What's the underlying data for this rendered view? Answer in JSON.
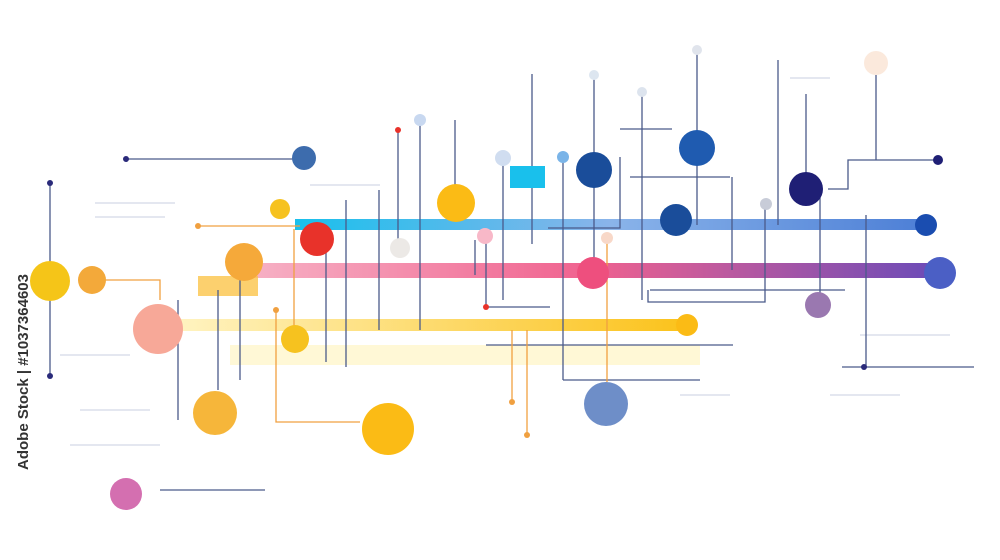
{
  "watermark": {
    "text": "Adobe Stock | #1037364603"
  }
}
